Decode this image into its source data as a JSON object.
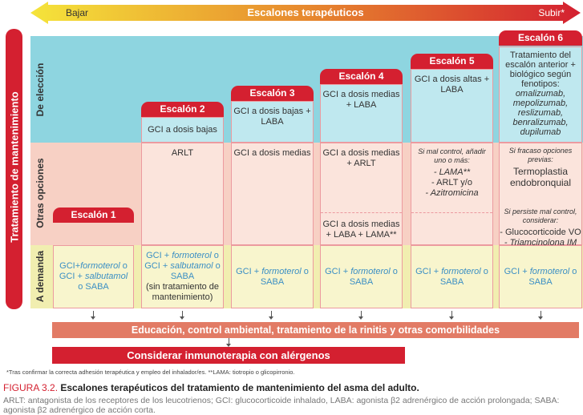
{
  "arrow": {
    "title": "Escalones terapéuticos",
    "left": "Bajar",
    "right": "Subir*"
  },
  "side_label": "Tratamiento de mantenimiento",
  "rows": [
    "De elección",
    "Otras opciones",
    "A demanda"
  ],
  "steps": [
    {
      "label": "Escalón 1",
      "eleccion": "",
      "otras": "",
      "demanda": [
        "GCI+",
        "formoterol",
        " o GCI + ",
        "salbutamol",
        " o SABA",
        ""
      ]
    },
    {
      "label": "Escalón 2",
      "eleccion": "GCI a dosis bajas",
      "otras": "ARLT",
      "demanda": [
        "GCI + ",
        "formoterol",
        " o GCI + ",
        "salbutamol",
        " o SABA",
        "(sin tratamiento de mantenimiento)"
      ]
    },
    {
      "label": "Escalón 3",
      "eleccion": "GCI a dosis bajas + LABA",
      "otras": "GCI a dosis medias",
      "demanda": [
        "GCI + ",
        "formoterol",
        " o SABA",
        "",
        "",
        ""
      ]
    },
    {
      "label": "Escalón 4",
      "eleccion": "GCI a dosis medias + LABA",
      "otras": "GCI a dosis medias + ARLT",
      "otras2": "GCI a dosis medias + LABA + LAMA**",
      "demanda": [
        "GCI + ",
        "formoterol",
        " o SABA",
        "",
        "",
        ""
      ]
    },
    {
      "label": "Escalón 5",
      "eleccion": "GCI a dosis altas + LABA",
      "otras_note": "Si mal control, añadir uno o más:",
      "otras_items": [
        "- LAMA**",
        "- ARLT y/o",
        "- Azitromicina"
      ],
      "demanda": [
        "GCI + ",
        "formoterol",
        " o SABA",
        "",
        "",
        ""
      ]
    },
    {
      "label": "Escalón 6",
      "eleccion": "Tratamiento del escalón anterior + biológico según fenotipos:",
      "biologics": [
        "omalizumab,",
        "mepolizumab,",
        "reslizumab,",
        "benralizumab,",
        "dupilumab"
      ],
      "otras_note": "Si fracaso opciones previas:",
      "otras_main": "Termoplastia endobronquial",
      "otras_note2": "Si persiste mal control, considerar:",
      "otras_items": [
        "- Glucocorticoide VO",
        "- Triamcinolona IM"
      ],
      "demanda": [
        "GCI + ",
        "formoterol",
        " o SABA",
        "",
        "",
        ""
      ]
    }
  ],
  "education": "Educación, control ambiental, tratamiento de la rinitis y otras comorbilidades",
  "immuno": "Considerar inmunoterapia con alérgenos",
  "footnote": "*Tras confirmar la correcta adhesión terapéutica y empleo del inhalador/es. **LAMA: tiotropio o glicopirronio.",
  "caption": {
    "prefix": "FIGURA 3.2.",
    "title": "Escalones terapéuticos del tratamiento de mantenimiento del asma del adulto.",
    "desc": "ARLT: antagonista de los receptores de los leucotrienos; GCI: glucocorticoide inhalado, LABA: agonista β2 adrenérgico de acción prolongada; SABA: agonista β2 adrenérgico de acción corta."
  },
  "colors": {
    "red": "#d42030",
    "blue_band": "#8ed5e0",
    "pink_band": "#f7d0c4",
    "yellow_band": "#f1eeb0",
    "education": "#e27b65",
    "demanda_text": "#3b8fc4"
  }
}
